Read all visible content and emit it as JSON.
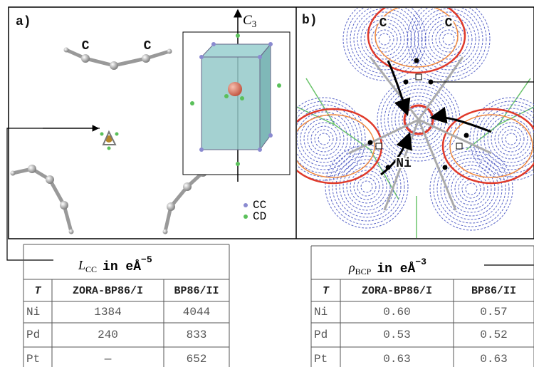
{
  "panel_a": {
    "label": "a)",
    "atom_labels": [
      "C",
      "C"
    ],
    "axis_label": {
      "symbol": "C",
      "subscript": "3"
    },
    "legend": [
      "CC",
      "CD"
    ]
  },
  "panel_b": {
    "label": "b)",
    "atom_labels": [
      "C",
      "C",
      "Ni"
    ]
  },
  "tables": [
    {
      "title": {
        "symbol": "L",
        "subscript": "CC",
        "unit": "in eÅ",
        "exponent": "−5"
      },
      "header": [
        "T",
        "ZORA-BP86/I",
        "BP86/II"
      ],
      "rows": [
        [
          "Ni",
          "1384",
          "4044"
        ],
        [
          "Pd",
          "240",
          "833"
        ],
        [
          "Pt",
          "—",
          "652"
        ]
      ]
    },
    {
      "title": {
        "symbol": "ρ",
        "subscript": "BCP",
        "unit": "in eÅ",
        "exponent": "−3"
      },
      "header": [
        "T",
        "ZORA-BP86/I",
        "BP86/II"
      ],
      "rows": [
        [
          "Ni",
          "0.60",
          "0.57"
        ],
        [
          "Pd",
          "0.53",
          "0.52"
        ],
        [
          "Pt",
          "0.63",
          "0.63"
        ]
      ]
    }
  ]
}
